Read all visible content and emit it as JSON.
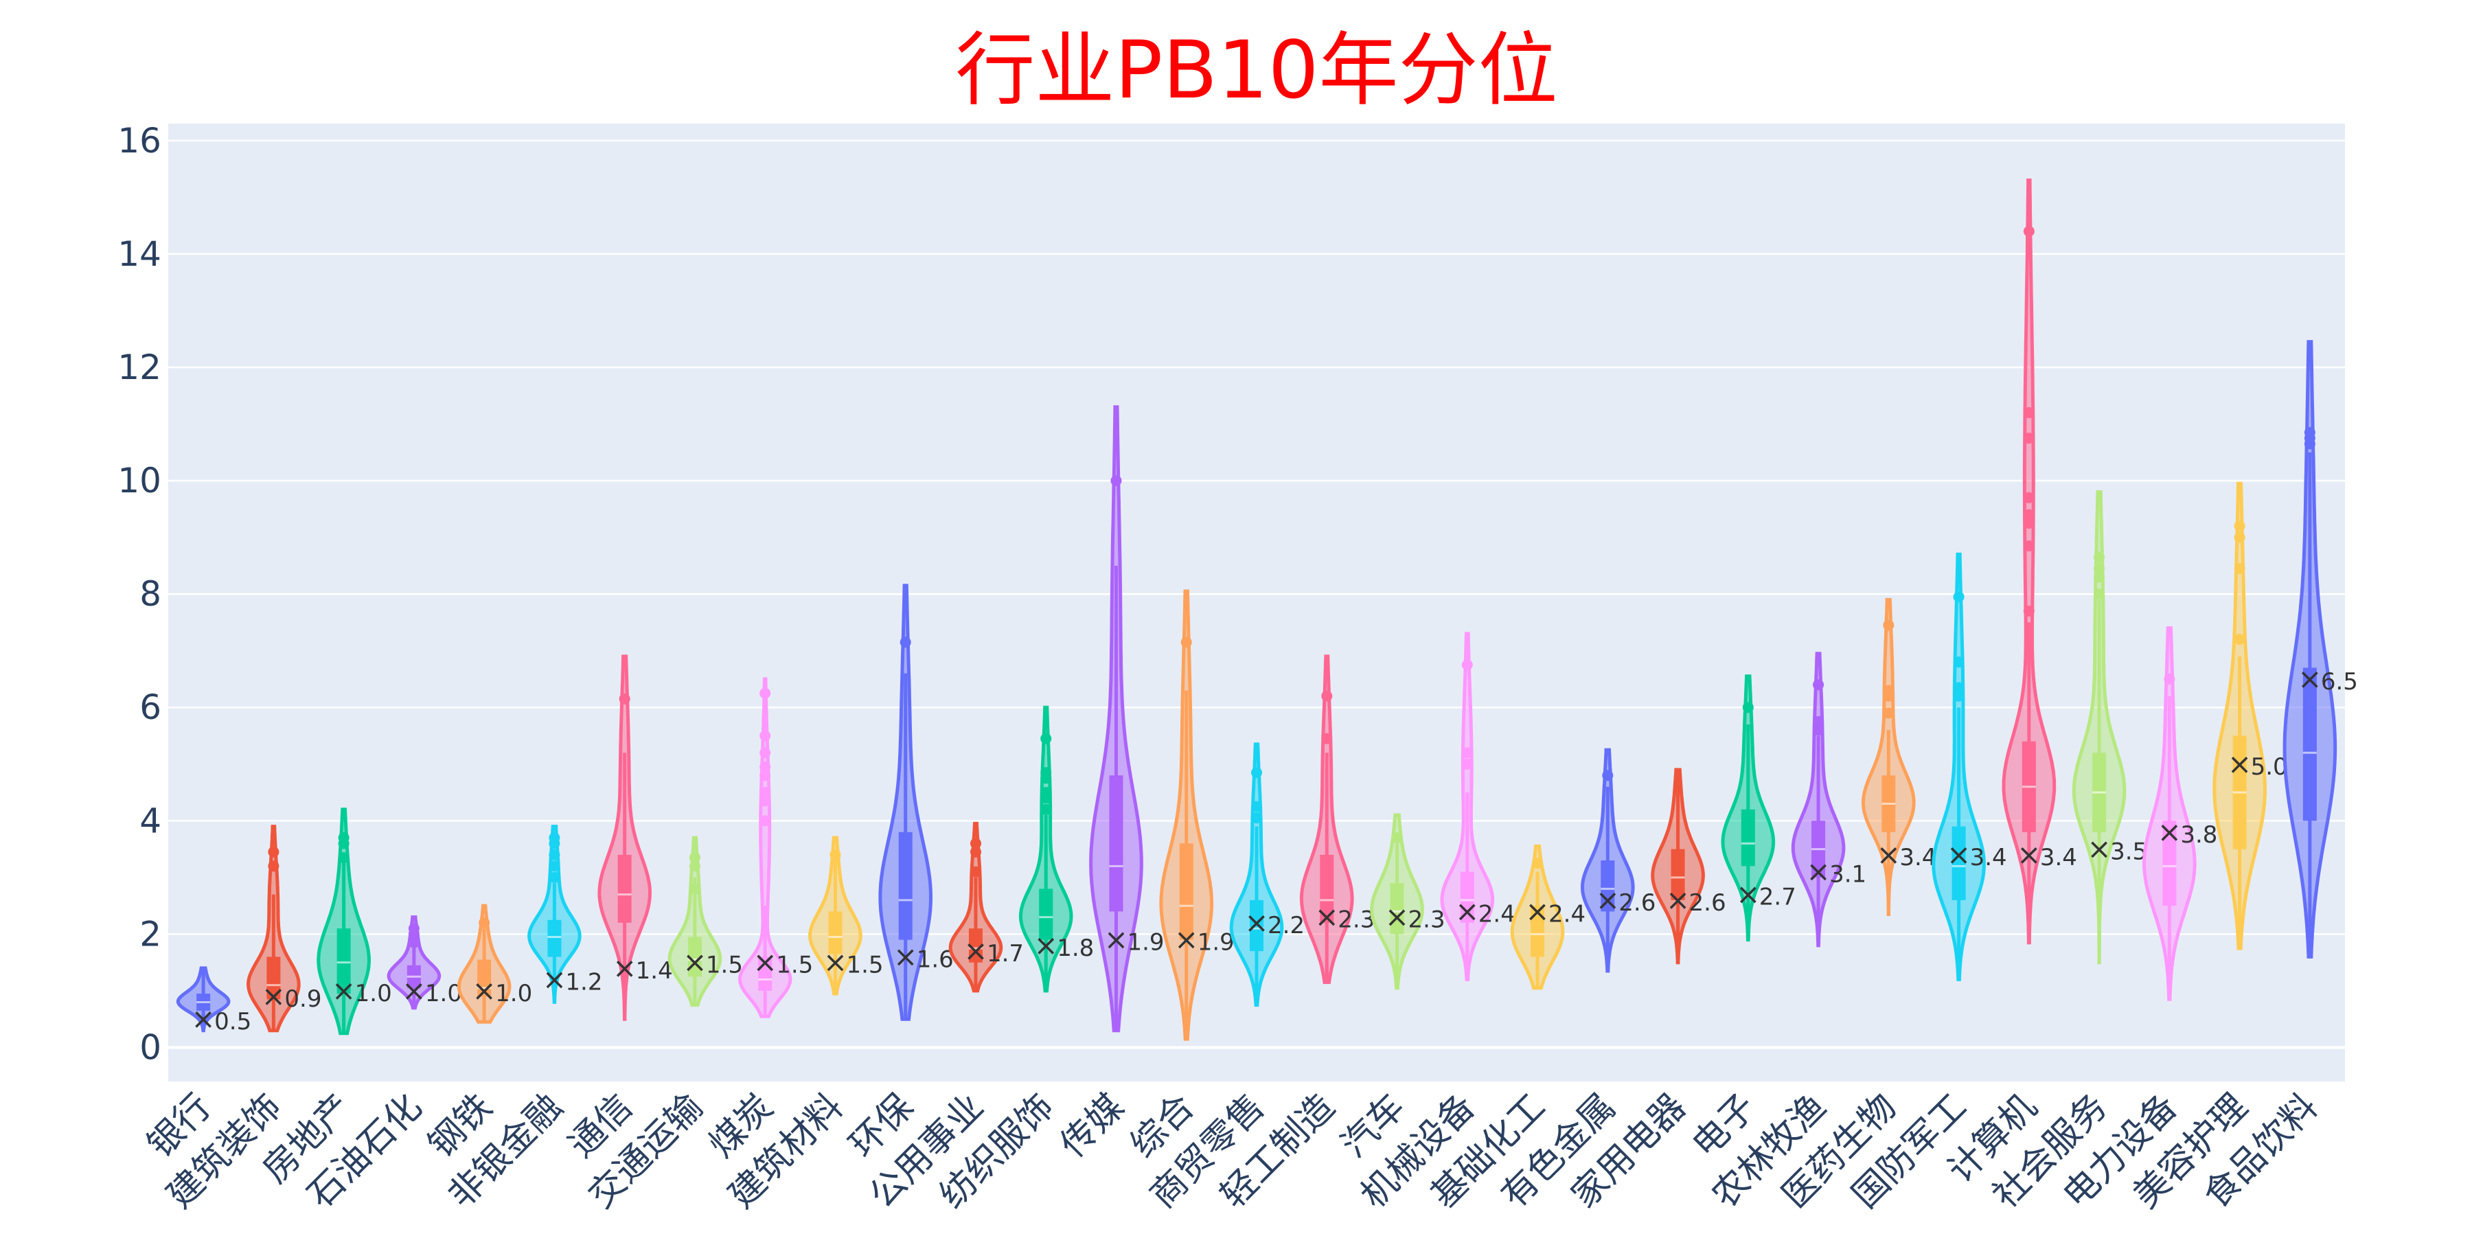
{
  "chart_data": {
    "type": "violin",
    "title": "行业PB10年分位",
    "xlabel": "",
    "ylabel": "",
    "ylim": [
      -0.6,
      16.3
    ],
    "yticks": [
      0,
      2,
      4,
      6,
      8,
      10,
      12,
      14,
      16
    ],
    "grid": true,
    "legend": "none",
    "colors": {
      "title": "#ff0000",
      "plot_bg": "#e5ecf6",
      "grid": "#ffffff",
      "tick_text": "#2a3f5f",
      "marker": "#333333",
      "palette": [
        "#636efa",
        "#ef553b",
        "#00cc96",
        "#ab63fa",
        "#ffa15a",
        "#19d3f3",
        "#ff6692",
        "#b6e880",
        "#ff97ff",
        "#fecb52"
      ]
    },
    "categories": [
      "银行",
      "建筑装饰",
      "房地产",
      "石油石化",
      "钢铁",
      "非银金融",
      "通信",
      "交通运输",
      "煤炭",
      "建筑材料",
      "环保",
      "公用事业",
      "纺织服饰",
      "传媒",
      "综合",
      "商贸零售",
      "轻工制造",
      "汽车",
      "机械设备",
      "基础化工",
      "有色金属",
      "家用电器",
      "电子",
      "农林牧渔",
      "医药生物",
      "国防军工",
      "计算机",
      "社会服务",
      "电力设备",
      "美容护理",
      "食品饮料"
    ],
    "series": [
      {
        "category": "银行",
        "current": 0.5,
        "current_label": "0.5",
        "min": 0.3,
        "q1": 0.65,
        "median": 0.8,
        "q3": 0.95,
        "max": 1.4,
        "fence_high": 1.4,
        "outliers": []
      },
      {
        "category": "建筑装饰",
        "current": 0.9,
        "current_label": "0.9",
        "min": 0.3,
        "q1": 0.85,
        "median": 1.1,
        "q3": 1.6,
        "max": 3.9,
        "fence_high": 2.7,
        "outliers": [
          3.2,
          3.45
        ]
      },
      {
        "category": "房地产",
        "current": 1.0,
        "current_label": "1.0",
        "min": 0.25,
        "q1": 0.95,
        "median": 1.5,
        "q3": 2.1,
        "max": 4.2,
        "fence_high": 3.3,
        "outliers": [
          3.35,
          3.6,
          3.7
        ]
      },
      {
        "category": "石油石化",
        "current": 1.0,
        "current_label": "1.0",
        "min": 0.7,
        "q1": 1.05,
        "median": 1.25,
        "q3": 1.45,
        "max": 2.3,
        "fence_high": 1.8,
        "outliers": [
          1.85,
          2.0,
          2.1
        ]
      },
      {
        "category": "钢铁",
        "current": 1.0,
        "current_label": "1.0",
        "min": 0.45,
        "q1": 0.9,
        "median": 1.05,
        "q3": 1.55,
        "max": 2.5,
        "fence_high": 2.1,
        "outliers": [
          2.2
        ]
      },
      {
        "category": "非银金融",
        "current": 1.2,
        "current_label": "1.2",
        "min": 0.8,
        "q1": 1.6,
        "median": 1.95,
        "q3": 2.25,
        "max": 3.9,
        "fence_high": 2.9,
        "outliers": [
          3.0,
          3.2,
          3.4,
          3.6,
          3.7
        ]
      },
      {
        "category": "通信",
        "current": 1.4,
        "current_label": "1.4",
        "min": 0.5,
        "q1": 2.2,
        "median": 2.7,
        "q3": 3.4,
        "max": 6.9,
        "fence_high": 5.2,
        "outliers": [
          6.15
        ]
      },
      {
        "category": "交通运输",
        "current": 1.5,
        "current_label": "1.5",
        "min": 0.75,
        "q1": 1.25,
        "median": 1.55,
        "q3": 1.95,
        "max": 3.7,
        "fence_high": 3.0,
        "outliers": [
          2.8,
          3.2,
          3.35
        ]
      },
      {
        "category": "煤炭",
        "current": 1.5,
        "current_label": "1.5",
        "min": 0.55,
        "q1": 1.0,
        "median": 1.2,
        "q3": 1.6,
        "max": 6.5,
        "fence_high": 2.5,
        "outliers": [
          4.0,
          4.35,
          4.5,
          4.8,
          4.95,
          5.2,
          5.5,
          6.25
        ]
      },
      {
        "category": "建筑材料",
        "current": 1.5,
        "current_label": "1.5",
        "min": 0.95,
        "q1": 1.65,
        "median": 1.95,
        "q3": 2.4,
        "max": 3.7,
        "fence_high": 3.3,
        "outliers": [
          3.4
        ]
      },
      {
        "category": "环保",
        "current": 1.6,
        "current_label": "1.6",
        "min": 0.5,
        "q1": 1.9,
        "median": 2.6,
        "q3": 3.8,
        "max": 8.15,
        "fence_high": 6.6,
        "outliers": [
          7.15
        ]
      },
      {
        "category": "公用事业",
        "current": 1.7,
        "current_label": "1.7",
        "min": 1.0,
        "q1": 1.5,
        "median": 1.75,
        "q3": 2.1,
        "max": 3.95,
        "fence_high": 3.0,
        "outliers": [
          3.1,
          3.45,
          3.6
        ]
      },
      {
        "category": "纺织服饰",
        "current": 1.8,
        "current_label": "1.8",
        "min": 1.0,
        "q1": 1.9,
        "median": 2.3,
        "q3": 2.8,
        "max": 6.0,
        "fence_high": 4.1,
        "outliers": [
          4.2,
          4.4,
          4.5,
          4.75,
          4.85,
          5.45
        ]
      },
      {
        "category": "传媒",
        "current": 1.9,
        "current_label": "1.9",
        "min": 0.3,
        "q1": 2.4,
        "median": 3.2,
        "q3": 4.8,
        "max": 11.3,
        "fence_high": 8.5,
        "outliers": [
          10.0
        ]
      },
      {
        "category": "综合",
        "current": 1.9,
        "current_label": "1.9",
        "min": 0.15,
        "q1": 1.9,
        "median": 2.5,
        "q3": 3.6,
        "max": 8.05,
        "fence_high": 6.3,
        "outliers": [
          7.15
        ]
      },
      {
        "category": "商贸零售",
        "current": 2.2,
        "current_label": "2.2",
        "min": 0.75,
        "q1": 1.7,
        "median": 2.1,
        "q3": 2.6,
        "max": 5.35,
        "fence_high": 3.9,
        "outliers": [
          4.05,
          4.25,
          4.85
        ]
      },
      {
        "category": "轻工制造",
        "current": 2.3,
        "current_label": "2.3",
        "min": 1.15,
        "q1": 2.2,
        "median": 2.6,
        "q3": 3.4,
        "max": 6.9,
        "fence_high": 5.2,
        "outliers": [
          5.45,
          6.2
        ]
      },
      {
        "category": "汽车",
        "current": 2.3,
        "current_label": "2.3",
        "min": 1.05,
        "q1": 2.0,
        "median": 2.4,
        "q3": 2.9,
        "max": 4.1,
        "fence_high": 3.6,
        "outliers": [
          3.7
        ]
      },
      {
        "category": "机械设备",
        "current": 2.4,
        "current_label": "2.4",
        "min": 1.2,
        "q1": 2.2,
        "median": 2.6,
        "q3": 3.1,
        "max": 7.3,
        "fence_high": 4.5,
        "outliers": [
          5.0,
          5.2,
          6.75
        ]
      },
      {
        "category": "基础化工",
        "current": 2.4,
        "current_label": "2.4",
        "min": 1.05,
        "q1": 1.6,
        "median": 2.0,
        "q3": 2.5,
        "max": 3.55,
        "fence_high": 3.1,
        "outliers": [
          3.25
        ]
      },
      {
        "category": "有色金属",
        "current": 2.6,
        "current_label": "2.6",
        "min": 1.35,
        "q1": 2.4,
        "median": 2.8,
        "q3": 3.3,
        "max": 5.25,
        "fence_high": 4.6,
        "outliers": [
          4.8
        ]
      },
      {
        "category": "家用电器",
        "current": 2.6,
        "current_label": "2.6",
        "min": 1.5,
        "q1": 2.6,
        "median": 3.0,
        "q3": 3.5,
        "max": 4.9,
        "fence_high": 4.9,
        "outliers": []
      },
      {
        "category": "电子",
        "current": 2.7,
        "current_label": "2.7",
        "min": 1.9,
        "q1": 3.2,
        "median": 3.6,
        "q3": 4.2,
        "max": 6.55,
        "fence_high": 5.7,
        "outliers": [
          6.0
        ]
      },
      {
        "category": "农林牧渔",
        "current": 3.1,
        "current_label": "3.1",
        "min": 1.8,
        "q1": 3.0,
        "median": 3.5,
        "q3": 4.0,
        "max": 6.95,
        "fence_high": 5.5,
        "outliers": [
          5.6,
          5.75,
          6.4
        ]
      },
      {
        "category": "医药生物",
        "current": 3.4,
        "current_label": "3.4",
        "min": 2.35,
        "q1": 3.8,
        "median": 4.3,
        "q3": 4.8,
        "max": 7.9,
        "fence_high": 5.6,
        "outliers": [
          5.9,
          6.2,
          6.3,
          7.45
        ]
      },
      {
        "category": "国防军工",
        "current": 3.4,
        "current_label": "3.4",
        "min": 1.2,
        "q1": 2.6,
        "median": 3.2,
        "q3": 3.9,
        "max": 8.7,
        "fence_high": 6.0,
        "outliers": [
          6.2,
          6.35,
          6.8,
          7.95
        ]
      },
      {
        "category": "计算机",
        "current": 3.4,
        "current_label": "3.4",
        "min": 1.85,
        "q1": 3.8,
        "median": 4.6,
        "q3": 5.4,
        "max": 15.3,
        "fence_high": 7.5,
        "outliers": [
          7.7,
          8.85,
          9.25,
          9.4,
          9.7,
          10.75,
          11.2,
          14.4
        ]
      },
      {
        "category": "社会服务",
        "current": 3.5,
        "current_label": "3.5",
        "min": 1.5,
        "q1": 3.8,
        "median": 4.5,
        "q3": 5.2,
        "max": 9.8,
        "fence_high": 7.9,
        "outliers": [
          8.0,
          8.3,
          8.45,
          8.65
        ]
      },
      {
        "category": "电力设备",
        "current": 3.8,
        "current_label": "3.8",
        "min": 0.85,
        "q1": 2.5,
        "median": 3.2,
        "q3": 4.0,
        "max": 7.4,
        "fence_high": 6.2,
        "outliers": [
          6.5
        ]
      },
      {
        "category": "美容护理",
        "current": 5.0,
        "current_label": "5.0",
        "min": 1.75,
        "q1": 3.5,
        "median": 4.5,
        "q3": 5.5,
        "max": 9.95,
        "fence_high": 6.9,
        "outliers": [
          7.2,
          8.45,
          9.0,
          9.2
        ]
      },
      {
        "category": "食品饮料",
        "current": 6.5,
        "current_label": "6.5",
        "min": 1.6,
        "q1": 4.0,
        "median": 5.2,
        "q3": 6.7,
        "max": 12.45,
        "fence_high": 10.5,
        "outliers": [
          10.65,
          10.75,
          10.85
        ]
      }
    ]
  }
}
